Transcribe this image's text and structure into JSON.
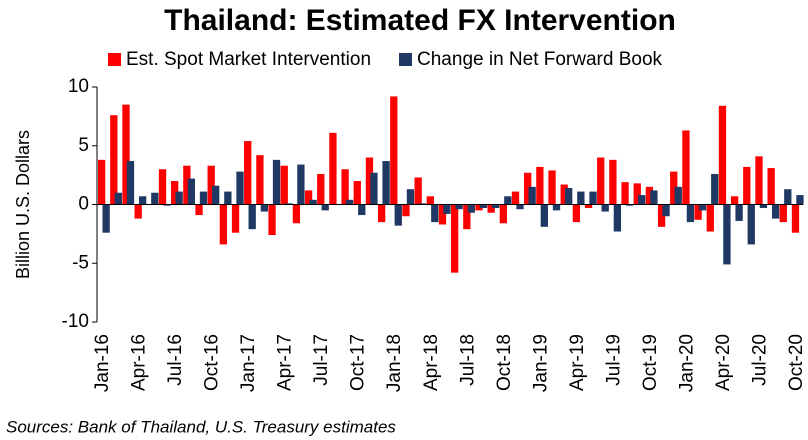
{
  "chart_data": {
    "type": "bar",
    "title": "Thailand: Estimated FX Intervention",
    "y_label": "Billion U.S. Dollars",
    "source": "Sources: Bank of Thailand, U.S. Treasury estimates",
    "categories": [
      "Jan-16",
      null,
      null,
      "Apr-16",
      null,
      null,
      "Jul-16",
      null,
      null,
      "Oct-16",
      null,
      null,
      "Jan-17",
      null,
      null,
      "Apr-17",
      null,
      null,
      "Jul-17",
      null,
      null,
      "Oct-17",
      null,
      null,
      "Jan-18",
      null,
      null,
      "Apr-18",
      null,
      null,
      "Jul-18",
      null,
      null,
      "Oct-18",
      null,
      null,
      "Jan-19",
      null,
      null,
      "Apr-19",
      null,
      null,
      "Jul-19",
      null,
      null,
      "Oct-19",
      null,
      null,
      "Jan-20",
      null,
      null,
      "Apr-20",
      null,
      null,
      "Jul-20",
      null,
      null,
      "Oct-20"
    ],
    "series": [
      {
        "name": "Est. Spot Market Intervention",
        "color": "#ff0000",
        "values": [
          3.8,
          7.6,
          8.5,
          -1.2,
          0,
          3.0,
          2.0,
          3.3,
          -0.9,
          3.3,
          -3.4,
          -2.4,
          5.4,
          4.2,
          -2.6,
          3.3,
          -1.6,
          1.2,
          2.6,
          6.1,
          3.0,
          2.0,
          4.0,
          -1.5,
          9.2,
          -1.0,
          2.3,
          0.7,
          -1.7,
          -5.8,
          -2.1,
          -0.5,
          -0.7,
          -1.6,
          1.1,
          2.7,
          3.2,
          2.9,
          1.7,
          -1.5,
          -0.3,
          4.0,
          3.8,
          1.9,
          1.8,
          1.5,
          -1.9,
          2.8,
          6.3,
          -1.3,
          -2.3,
          8.4,
          0.7,
          3.2,
          4.1,
          3.1,
          -1.5,
          -2.4
        ]
      },
      {
        "name": "Change in Net Forward Book",
        "color": "#1f3864",
        "values": [
          -2.4,
          1.0,
          3.7,
          0.7,
          1.0,
          -0.1,
          1.1,
          2.2,
          1.1,
          1.6,
          1.1,
          2.8,
          -2.1,
          -0.6,
          3.8,
          0.1,
          3.4,
          0.4,
          -0.5,
          0,
          0.4,
          -0.9,
          2.7,
          3.7,
          -1.8,
          1.3,
          0.1,
          -1.5,
          -0.8,
          -0.4,
          -0.7,
          -0.3,
          -0.3,
          0.7,
          -0.4,
          1.5,
          -1.9,
          -0.5,
          1.4,
          1.1,
          1.1,
          -0.6,
          -2.3,
          -0.1,
          0.8,
          1.2,
          -1.0,
          1.5,
          -1.5,
          -0.5,
          2.6,
          -5.1,
          -1.4,
          -3.4,
          -0.3,
          -1.2,
          1.3,
          0.8
        ]
      }
    ],
    "ylim": [
      -10,
      10
    ],
    "yticks": [
      -10,
      -5,
      0,
      5,
      10
    ]
  }
}
